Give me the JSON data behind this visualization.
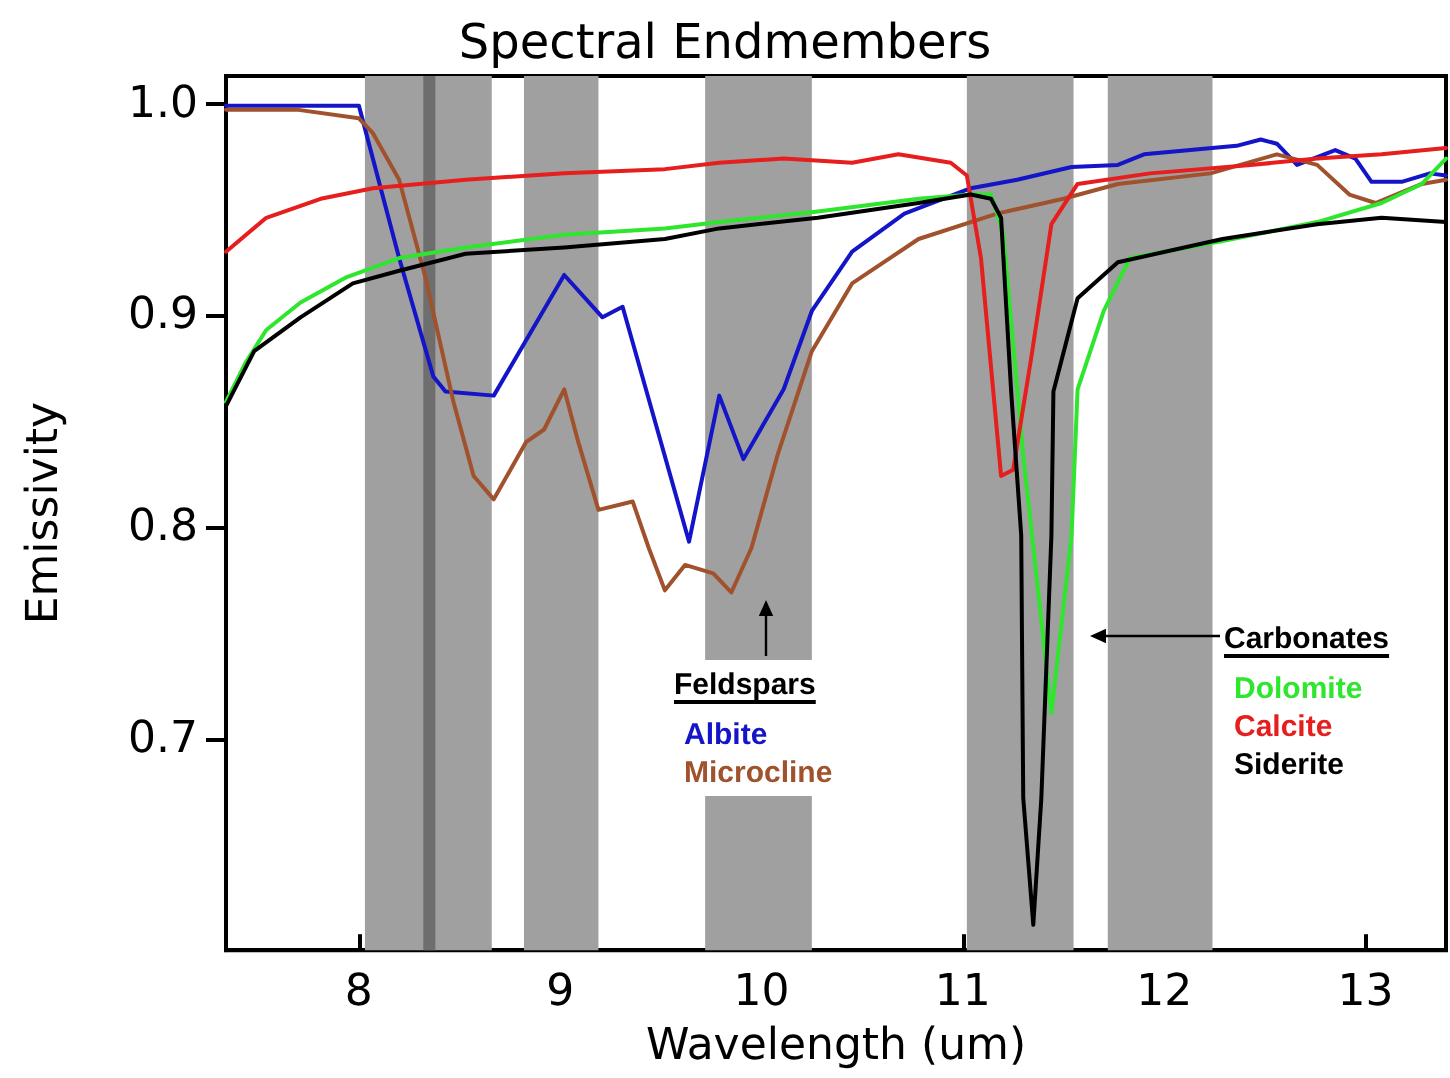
{
  "chart_data": {
    "type": "line",
    "title": "Spectral Endmembers",
    "xlabel": "Wavelength (um)",
    "ylabel": "Emissivity",
    "xlim": [
      7.34,
      13.4
    ],
    "ylim": [
      0.6,
      1.013
    ],
    "xticks": [
      8,
      9,
      10,
      11,
      12,
      13
    ],
    "yticks": [
      0.7,
      0.8,
      0.9,
      {
        "value": 1.0,
        "label": "1.0"
      }
    ],
    "grid": false,
    "legend": "bottom",
    "marker": "none",
    "line_style": "solid",
    "annotations": [
      "Feldspars",
      "Carbonates"
    ],
    "bands": [
      {
        "axis": "x",
        "from": 8.03,
        "to": 8.66,
        "color": "#a0a0a0"
      },
      {
        "axis": "x",
        "from": 8.32,
        "to": 8.38,
        "color": "#6e6e6e"
      },
      {
        "axis": "x",
        "from": 8.82,
        "to": 9.19,
        "color": "#a0a0a0"
      },
      {
        "axis": "x",
        "from": 9.72,
        "to": 10.25,
        "color": "#a0a0a0"
      },
      {
        "axis": "x",
        "from": 11.02,
        "to": 11.55,
        "color": "#a0a0a0"
      },
      {
        "axis": "x",
        "from": 11.72,
        "to": 12.24,
        "color": "#a0a0a0"
      }
    ],
    "series": [
      {
        "name": "Albite",
        "color": "#1414c8",
        "x": [
          7.34,
          7.6,
          8.0,
          8.2,
          8.37,
          8.43,
          8.67,
          9.02,
          9.21,
          9.31,
          9.64,
          9.79,
          9.91,
          10.11,
          10.25,
          10.45,
          10.71,
          11.04,
          11.27,
          11.54,
          11.77,
          11.9,
          12.36,
          12.48,
          12.56,
          12.66,
          12.85,
          12.95,
          13.03,
          13.18,
          13.32,
          13.4
        ],
        "values": [
          0.999,
          0.999,
          0.999,
          0.927,
          0.871,
          0.864,
          0.862,
          0.919,
          0.899,
          0.904,
          0.793,
          0.862,
          0.832,
          0.865,
          0.902,
          0.93,
          0.948,
          0.96,
          0.964,
          0.97,
          0.971,
          0.976,
          0.98,
          0.983,
          0.981,
          0.971,
          0.978,
          0.974,
          0.963,
          0.963,
          0.967,
          0.966
        ]
      },
      {
        "name": "Microcline",
        "color": "#a0522d",
        "x": [
          7.34,
          7.7,
          8.0,
          8.07,
          8.2,
          8.33,
          8.47,
          8.57,
          8.67,
          8.83,
          8.92,
          9.02,
          9.09,
          9.19,
          9.36,
          9.44,
          9.52,
          9.62,
          9.76,
          9.85,
          9.95,
          10.08,
          10.25,
          10.45,
          10.78,
          11.17,
          11.5,
          11.77,
          12.23,
          12.56,
          12.76,
          12.92,
          13.05,
          13.28,
          13.4
        ],
        "values": [
          0.997,
          0.997,
          0.993,
          0.986,
          0.964,
          0.918,
          0.859,
          0.824,
          0.813,
          0.84,
          0.846,
          0.865,
          0.84,
          0.808,
          0.812,
          0.79,
          0.77,
          0.782,
          0.778,
          0.769,
          0.79,
          0.834,
          0.883,
          0.915,
          0.936,
          0.948,
          0.955,
          0.962,
          0.967,
          0.976,
          0.971,
          0.957,
          0.953,
          0.962,
          0.964
        ]
      },
      {
        "name": "Dolomite",
        "color": "#2ee62e",
        "x": [
          7.34,
          7.44,
          7.54,
          7.71,
          7.94,
          8.2,
          8.53,
          9.02,
          9.52,
          9.79,
          10.28,
          10.78,
          11.04,
          11.14,
          11.2,
          11.3,
          11.44,
          11.54,
          11.57,
          11.7,
          11.83,
          12.29,
          12.76,
          13.08,
          13.28,
          13.4
        ],
        "values": [
          0.859,
          0.878,
          0.893,
          0.906,
          0.918,
          0.927,
          0.932,
          0.938,
          0.941,
          0.944,
          0.949,
          0.955,
          0.957,
          0.957,
          0.939,
          0.834,
          0.712,
          0.796,
          0.865,
          0.902,
          0.927,
          0.935,
          0.944,
          0.953,
          0.962,
          0.974
        ]
      },
      {
        "name": "Calcite",
        "color": "#e61e1e",
        "x": [
          7.34,
          7.54,
          7.81,
          8.07,
          8.53,
          9.02,
          9.52,
          9.79,
          10.11,
          10.45,
          10.68,
          10.94,
          11.02,
          11.09,
          11.19,
          11.25,
          11.34,
          11.44,
          11.57,
          11.93,
          12.43,
          12.76,
          13.08,
          13.4
        ],
        "values": [
          0.93,
          0.946,
          0.955,
          0.96,
          0.964,
          0.967,
          0.969,
          0.972,
          0.974,
          0.972,
          0.976,
          0.972,
          0.966,
          0.927,
          0.824,
          0.827,
          0.88,
          0.943,
          0.962,
          0.967,
          0.971,
          0.974,
          0.976,
          0.979
        ]
      },
      {
        "name": "Siderite",
        "color": "#000000",
        "x": [
          7.34,
          7.48,
          7.71,
          7.97,
          8.2,
          8.53,
          9.02,
          9.52,
          9.79,
          10.28,
          10.78,
          11.04,
          11.14,
          11.19,
          11.24,
          11.29,
          11.3,
          11.35,
          11.39,
          11.44,
          11.45,
          11.57,
          11.77,
          12.29,
          12.76,
          13.08,
          13.4
        ],
        "values": [
          0.857,
          0.883,
          0.899,
          0.915,
          0.921,
          0.929,
          0.932,
          0.936,
          0.941,
          0.946,
          0.953,
          0.957,
          0.955,
          0.946,
          0.864,
          0.796,
          0.672,
          0.612,
          0.672,
          0.796,
          0.864,
          0.908,
          0.925,
          0.936,
          0.943,
          0.946,
          0.944
        ]
      }
    ]
  }
}
